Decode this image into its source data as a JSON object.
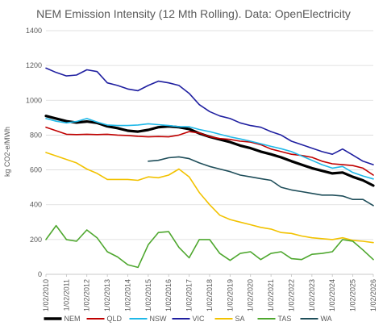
{
  "chart_data": {
    "type": "line",
    "title": "NEM Emission Intensity (12 Mth Rolling). Data: OpenElectricity",
    "ylabel": "kg CO2-e/MWh",
    "xlabel": "",
    "ylim": [
      0,
      1400
    ],
    "y_ticks": [
      0,
      200,
      400,
      600,
      800,
      1000,
      1200,
      1400
    ],
    "x_range": [
      "2010-02-01",
      "2026-02-01"
    ],
    "x_tick_labels": [
      "1/02/2010",
      "1/02/2011",
      "1/02/2012",
      "1/02/2013",
      "1/02/2014",
      "1/02/2015",
      "1/02/2016",
      "1/02/2017",
      "1/02/2018",
      "1/02/2019",
      "1/02/2020",
      "1/02/2021",
      "1/02/2022",
      "1/02/2023",
      "1/02/2024",
      "1/02/2025",
      "1/02/2026"
    ],
    "grid": true,
    "legend_position": "bottom",
    "series": [
      {
        "name": "NEM",
        "color": "#000000",
        "width": 3.2,
        "points": [
          [
            "2010-02-01",
            910
          ],
          [
            "2010-08-01",
            895
          ],
          [
            "2011-02-01",
            880
          ],
          [
            "2011-08-01",
            872
          ],
          [
            "2012-02-01",
            878
          ],
          [
            "2012-08-01",
            870
          ],
          [
            "2013-02-01",
            850
          ],
          [
            "2013-08-01",
            840
          ],
          [
            "2014-02-01",
            825
          ],
          [
            "2014-08-01",
            820
          ],
          [
            "2015-02-01",
            830
          ],
          [
            "2015-08-01",
            845
          ],
          [
            "2016-02-01",
            850
          ],
          [
            "2016-08-01",
            845
          ],
          [
            "2017-02-01",
            835
          ],
          [
            "2017-08-01",
            810
          ],
          [
            "2018-02-01",
            790
          ],
          [
            "2018-08-01",
            775
          ],
          [
            "2019-02-01",
            760
          ],
          [
            "2019-08-01",
            740
          ],
          [
            "2020-02-01",
            725
          ],
          [
            "2020-08-01",
            705
          ],
          [
            "2021-02-01",
            690
          ],
          [
            "2021-08-01",
            672
          ],
          [
            "2022-02-01",
            650
          ],
          [
            "2022-08-01",
            630
          ],
          [
            "2023-02-01",
            610
          ],
          [
            "2023-08-01",
            595
          ],
          [
            "2024-02-01",
            580
          ],
          [
            "2024-08-01",
            585
          ],
          [
            "2025-02-01",
            560
          ],
          [
            "2025-08-01",
            540
          ],
          [
            "2026-02-01",
            510
          ]
        ]
      },
      {
        "name": "QLD",
        "color": "#C00000",
        "width": 1.6,
        "points": [
          [
            "2010-02-01",
            845
          ],
          [
            "2010-08-01",
            825
          ],
          [
            "2011-02-01",
            805
          ],
          [
            "2011-08-01",
            803
          ],
          [
            "2012-02-01",
            805
          ],
          [
            "2012-08-01",
            803
          ],
          [
            "2013-02-01",
            805
          ],
          [
            "2013-08-01",
            800
          ],
          [
            "2014-02-01",
            798
          ],
          [
            "2014-08-01",
            793
          ],
          [
            "2015-02-01",
            790
          ],
          [
            "2015-08-01",
            792
          ],
          [
            "2016-02-01",
            790
          ],
          [
            "2016-08-01",
            800
          ],
          [
            "2017-02-01",
            820
          ],
          [
            "2017-08-01",
            812
          ],
          [
            "2018-02-01",
            790
          ],
          [
            "2018-08-01",
            780
          ],
          [
            "2019-02-01",
            775
          ],
          [
            "2019-08-01",
            765
          ],
          [
            "2020-02-01",
            760
          ],
          [
            "2020-08-01",
            745
          ],
          [
            "2021-02-01",
            720
          ],
          [
            "2021-08-01",
            705
          ],
          [
            "2022-02-01",
            690
          ],
          [
            "2022-08-01",
            683
          ],
          [
            "2023-02-01",
            672
          ],
          [
            "2023-08-01",
            650
          ],
          [
            "2024-02-01",
            635
          ],
          [
            "2024-08-01",
            630
          ],
          [
            "2025-02-01",
            625
          ],
          [
            "2025-08-01",
            610
          ],
          [
            "2026-02-01",
            570
          ]
        ]
      },
      {
        "name": "NSW",
        "color": "#1FB8E8",
        "width": 1.6,
        "points": [
          [
            "2010-02-01",
            895
          ],
          [
            "2010-08-01",
            880
          ],
          [
            "2011-02-01",
            870
          ],
          [
            "2011-08-01",
            878
          ],
          [
            "2012-02-01",
            895
          ],
          [
            "2012-08-01",
            875
          ],
          [
            "2013-02-01",
            858
          ],
          [
            "2013-08-01",
            855
          ],
          [
            "2014-02-01",
            855
          ],
          [
            "2014-08-01",
            858
          ],
          [
            "2015-02-01",
            865
          ],
          [
            "2015-08-01",
            860
          ],
          [
            "2016-02-01",
            855
          ],
          [
            "2016-08-01",
            848
          ],
          [
            "2017-02-01",
            848
          ],
          [
            "2017-08-01",
            832
          ],
          [
            "2018-02-01",
            820
          ],
          [
            "2018-08-01",
            805
          ],
          [
            "2019-02-01",
            790
          ],
          [
            "2019-08-01",
            778
          ],
          [
            "2020-02-01",
            765
          ],
          [
            "2020-08-01",
            750
          ],
          [
            "2021-02-01",
            735
          ],
          [
            "2021-08-01",
            722
          ],
          [
            "2022-02-01",
            705
          ],
          [
            "2022-08-01",
            680
          ],
          [
            "2023-02-01",
            655
          ],
          [
            "2023-08-01",
            630
          ],
          [
            "2024-02-01",
            610
          ],
          [
            "2024-08-01",
            620
          ],
          [
            "2025-02-01",
            585
          ],
          [
            "2025-08-01",
            565
          ],
          [
            "2026-02-01",
            548
          ]
        ]
      },
      {
        "name": "VIC",
        "color": "#1F1FA0",
        "width": 1.6,
        "points": [
          [
            "2010-02-01",
            1185
          ],
          [
            "2010-08-01",
            1160
          ],
          [
            "2011-02-01",
            1140
          ],
          [
            "2011-08-01",
            1145
          ],
          [
            "2012-02-01",
            1175
          ],
          [
            "2012-08-01",
            1165
          ],
          [
            "2013-02-01",
            1100
          ],
          [
            "2013-08-01",
            1085
          ],
          [
            "2014-02-01",
            1065
          ],
          [
            "2014-08-01",
            1055
          ],
          [
            "2015-02-01",
            1085
          ],
          [
            "2015-08-01",
            1110
          ],
          [
            "2016-02-01",
            1100
          ],
          [
            "2016-08-01",
            1085
          ],
          [
            "2017-02-01",
            1040
          ],
          [
            "2017-08-01",
            975
          ],
          [
            "2018-02-01",
            935
          ],
          [
            "2018-08-01",
            910
          ],
          [
            "2019-02-01",
            895
          ],
          [
            "2019-08-01",
            870
          ],
          [
            "2020-02-01",
            855
          ],
          [
            "2020-08-01",
            845
          ],
          [
            "2021-02-01",
            820
          ],
          [
            "2021-08-01",
            800
          ],
          [
            "2022-02-01",
            765
          ],
          [
            "2022-08-01",
            745
          ],
          [
            "2023-02-01",
            725
          ],
          [
            "2023-08-01",
            705
          ],
          [
            "2024-02-01",
            690
          ],
          [
            "2024-08-01",
            720
          ],
          [
            "2025-02-01",
            685
          ],
          [
            "2025-08-01",
            650
          ],
          [
            "2026-02-01",
            630
          ]
        ]
      },
      {
        "name": "SA",
        "color": "#F2C200",
        "width": 1.6,
        "points": [
          [
            "2010-02-01",
            700
          ],
          [
            "2010-08-01",
            680
          ],
          [
            "2011-02-01",
            660
          ],
          [
            "2011-08-01",
            640
          ],
          [
            "2012-02-01",
            605
          ],
          [
            "2012-08-01",
            580
          ],
          [
            "2013-02-01",
            545
          ],
          [
            "2013-08-01",
            545
          ],
          [
            "2014-02-01",
            545
          ],
          [
            "2014-08-01",
            540
          ],
          [
            "2015-02-01",
            560
          ],
          [
            "2015-08-01",
            555
          ],
          [
            "2016-02-01",
            570
          ],
          [
            "2016-08-01",
            605
          ],
          [
            "2017-02-01",
            560
          ],
          [
            "2017-08-01",
            470
          ],
          [
            "2018-02-01",
            400
          ],
          [
            "2018-08-01",
            340
          ],
          [
            "2019-02-01",
            315
          ],
          [
            "2019-08-01",
            300
          ],
          [
            "2020-02-01",
            285
          ],
          [
            "2020-08-01",
            270
          ],
          [
            "2021-02-01",
            260
          ],
          [
            "2021-08-01",
            240
          ],
          [
            "2022-02-01",
            235
          ],
          [
            "2022-08-01",
            220
          ],
          [
            "2023-02-01",
            210
          ],
          [
            "2023-08-01",
            205
          ],
          [
            "2024-02-01",
            200
          ],
          [
            "2024-08-01",
            210
          ],
          [
            "2025-02-01",
            195
          ],
          [
            "2025-08-01",
            190
          ],
          [
            "2026-02-01",
            182
          ]
        ]
      },
      {
        "name": "TAS",
        "color": "#4EA72E",
        "width": 1.6,
        "points": [
          [
            "2010-02-01",
            200
          ],
          [
            "2010-08-01",
            280
          ],
          [
            "2011-02-01",
            200
          ],
          [
            "2011-08-01",
            190
          ],
          [
            "2012-02-01",
            255
          ],
          [
            "2012-08-01",
            210
          ],
          [
            "2013-02-01",
            130
          ],
          [
            "2013-08-01",
            100
          ],
          [
            "2014-02-01",
            55
          ],
          [
            "2014-08-01",
            40
          ],
          [
            "2015-02-01",
            170
          ],
          [
            "2015-08-01",
            240
          ],
          [
            "2016-02-01",
            245
          ],
          [
            "2016-08-01",
            155
          ],
          [
            "2017-02-01",
            95
          ],
          [
            "2017-08-01",
            200
          ],
          [
            "2018-02-01",
            200
          ],
          [
            "2018-08-01",
            120
          ],
          [
            "2019-02-01",
            80
          ],
          [
            "2019-08-01",
            120
          ],
          [
            "2020-02-01",
            130
          ],
          [
            "2020-08-01",
            85
          ],
          [
            "2021-02-01",
            120
          ],
          [
            "2021-08-01",
            130
          ],
          [
            "2022-02-01",
            90
          ],
          [
            "2022-08-01",
            85
          ],
          [
            "2023-02-01",
            115
          ],
          [
            "2023-08-01",
            120
          ],
          [
            "2024-02-01",
            130
          ],
          [
            "2024-08-01",
            200
          ],
          [
            "2025-02-01",
            190
          ],
          [
            "2025-08-01",
            140
          ],
          [
            "2026-02-01",
            85
          ]
        ]
      },
      {
        "name": "WA",
        "color": "#1F4E5A",
        "width": 1.6,
        "points": [
          [
            "2015-02-01",
            650
          ],
          [
            "2015-08-01",
            655
          ],
          [
            "2016-02-01",
            670
          ],
          [
            "2016-08-01",
            675
          ],
          [
            "2017-02-01",
            665
          ],
          [
            "2017-08-01",
            640
          ],
          [
            "2018-02-01",
            620
          ],
          [
            "2018-08-01",
            605
          ],
          [
            "2019-02-01",
            590
          ],
          [
            "2019-08-01",
            570
          ],
          [
            "2020-02-01",
            560
          ],
          [
            "2020-08-01",
            550
          ],
          [
            "2021-02-01",
            540
          ],
          [
            "2021-08-01",
            500
          ],
          [
            "2022-02-01",
            485
          ],
          [
            "2022-08-01",
            475
          ],
          [
            "2023-02-01",
            465
          ],
          [
            "2023-08-01",
            455
          ],
          [
            "2024-02-01",
            455
          ],
          [
            "2024-08-01",
            450
          ],
          [
            "2025-02-01",
            430
          ],
          [
            "2025-08-01",
            430
          ],
          [
            "2026-02-01",
            395
          ]
        ]
      }
    ]
  }
}
